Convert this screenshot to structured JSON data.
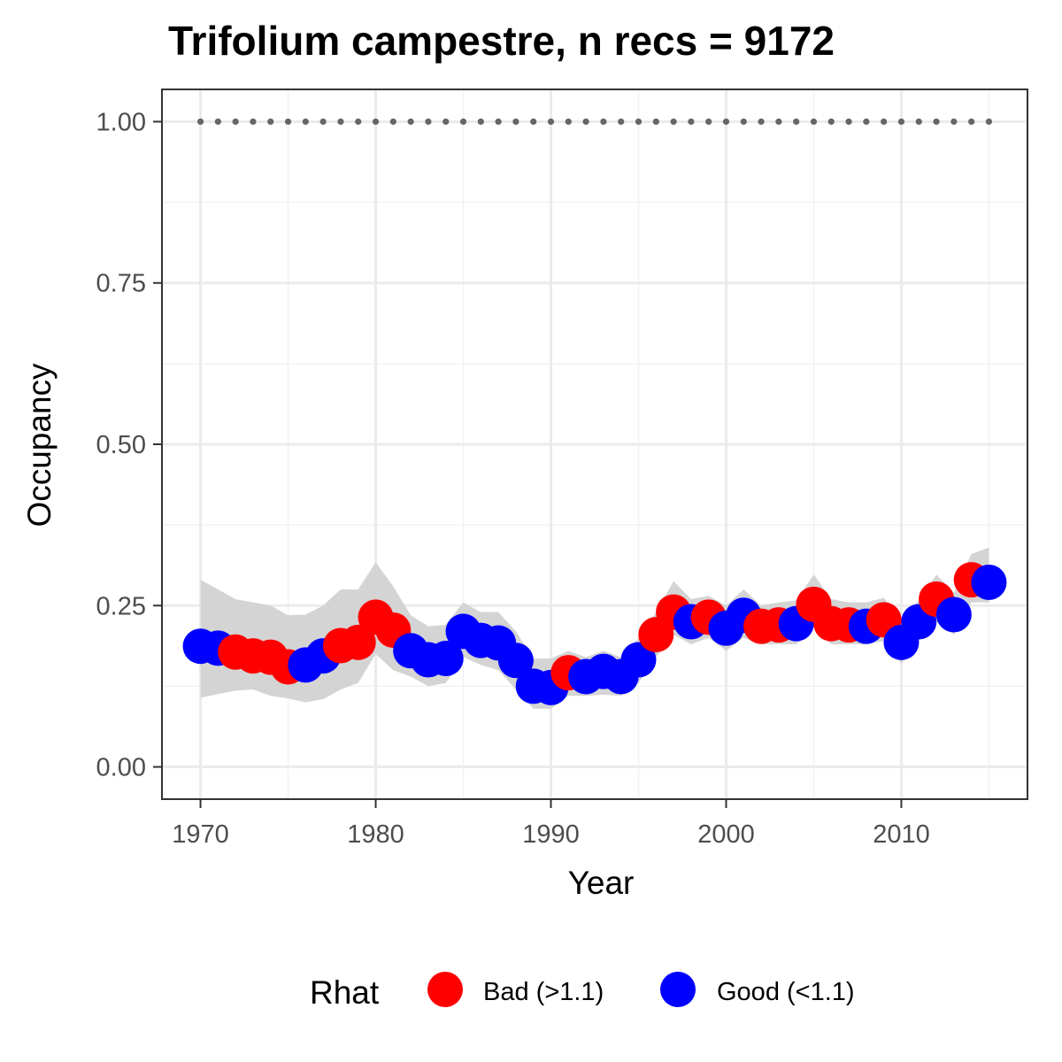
{
  "chart_data": {
    "type": "scatter",
    "title": "Trifolium campestre, n recs = 9172",
    "xlabel": "Year",
    "ylabel": "Occupancy",
    "xlim": [
      1967.8,
      2017.2
    ],
    "ylim": [
      -0.05,
      1.05
    ],
    "x_ticks": [
      1970,
      1980,
      1990,
      2000,
      2010
    ],
    "x_tick_labels": [
      "1970",
      "1980",
      "1990",
      "2000",
      "2010"
    ],
    "y_ticks": [
      0,
      0.25,
      0.5,
      0.75,
      1
    ],
    "y_tick_labels": [
      "0.00",
      "0.25",
      "0.50",
      "0.75",
      "1.00"
    ],
    "grid": true,
    "legend": {
      "title": "Rhat",
      "position": "bottom",
      "entries": [
        {
          "key": "bad",
          "label": "Bad (>1.1)",
          "color": "#ff0000"
        },
        {
          "key": "good",
          "label": "Good (<1.1)",
          "color": "#0000ff"
        }
      ]
    },
    "series": [
      {
        "x": [
          1970,
          1971,
          1972,
          1973,
          1974,
          1975,
          1976,
          1977,
          1978,
          1979,
          1980,
          1981,
          1982,
          1983,
          1984,
          1985,
          1986,
          1987,
          1988,
          1989,
          1990,
          1991,
          1992,
          1993,
          1994,
          1995,
          1996,
          1997,
          1998,
          1999,
          2000,
          2001,
          2002,
          2003,
          2004,
          2005,
          2006,
          2007,
          2008,
          2009,
          2010,
          2011,
          2012,
          2013,
          2014,
          2015
        ],
        "values": [
          0.187,
          0.184,
          0.178,
          0.172,
          0.17,
          0.155,
          0.158,
          0.172,
          0.188,
          0.193,
          0.232,
          0.212,
          0.18,
          0.166,
          0.168,
          0.21,
          0.196,
          0.192,
          0.165,
          0.125,
          0.123,
          0.146,
          0.14,
          0.148,
          0.14,
          0.166,
          0.205,
          0.24,
          0.225,
          0.232,
          0.215,
          0.235,
          0.218,
          0.22,
          0.222,
          0.252,
          0.222,
          0.22,
          0.218,
          0.228,
          0.193,
          0.225,
          0.26,
          0.236,
          0.29,
          0.286
        ],
        "rhat": [
          "good",
          "good",
          "bad",
          "bad",
          "bad",
          "bad",
          "good",
          "good",
          "bad",
          "bad",
          "bad",
          "bad",
          "good",
          "good",
          "good",
          "good",
          "good",
          "good",
          "good",
          "good",
          "good",
          "bad",
          "good",
          "good",
          "good",
          "good",
          "bad",
          "bad",
          "good",
          "bad",
          "good",
          "good",
          "bad",
          "bad",
          "good",
          "bad",
          "bad",
          "bad",
          "good",
          "bad",
          "good",
          "good",
          "bad",
          "good",
          "bad",
          "good"
        ],
        "lower": [
          0.107,
          0.113,
          0.118,
          0.12,
          0.11,
          0.106,
          0.1,
          0.105,
          0.12,
          0.13,
          0.175,
          0.15,
          0.14,
          0.125,
          0.13,
          0.17,
          0.158,
          0.15,
          0.12,
          0.09,
          0.09,
          0.11,
          0.11,
          0.112,
          0.11,
          0.13,
          0.17,
          0.205,
          0.19,
          0.2,
          0.18,
          0.2,
          0.19,
          0.19,
          0.19,
          0.215,
          0.19,
          0.19,
          0.19,
          0.195,
          0.16,
          0.195,
          0.225,
          0.205,
          0.255,
          0.255
        ],
        "upper": [
          0.29,
          0.275,
          0.26,
          0.255,
          0.25,
          0.235,
          0.236,
          0.25,
          0.275,
          0.275,
          0.317,
          0.28,
          0.235,
          0.218,
          0.22,
          0.255,
          0.24,
          0.24,
          0.21,
          0.168,
          0.168,
          0.18,
          0.17,
          0.18,
          0.17,
          0.2,
          0.24,
          0.288,
          0.26,
          0.265,
          0.25,
          0.275,
          0.25,
          0.255,
          0.258,
          0.298,
          0.26,
          0.255,
          0.255,
          0.262,
          0.23,
          0.258,
          0.298,
          0.27,
          0.33,
          0.34
        ]
      }
    ],
    "reference_line": {
      "y": 1.0,
      "style": "dotted",
      "color": "#666666",
      "x_range": [
        1970,
        2015
      ]
    }
  }
}
